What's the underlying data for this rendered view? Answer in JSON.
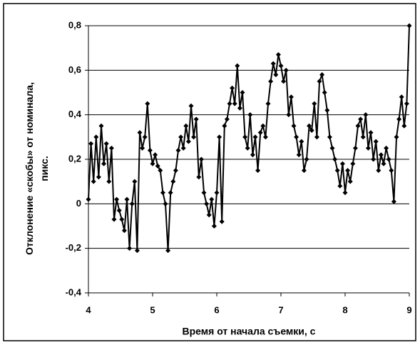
{
  "chart_data": {
    "type": "line",
    "xlabel": "Время от начала съемки, с",
    "ylabel": "Отклонение «скобы» от номинала, пикс.",
    "x": [
      4.0,
      4.04,
      4.08,
      4.12,
      4.16,
      4.2,
      4.24,
      4.28,
      4.32,
      4.36,
      4.4,
      4.44,
      4.48,
      4.52,
      4.56,
      4.6,
      4.64,
      4.68,
      4.72,
      4.76,
      4.8,
      4.84,
      4.88,
      4.92,
      4.96,
      5.0,
      5.04,
      5.08,
      5.12,
      5.16,
      5.2,
      5.24,
      5.28,
      5.32,
      5.36,
      5.4,
      5.44,
      5.48,
      5.52,
      5.56,
      5.6,
      5.64,
      5.68,
      5.72,
      5.76,
      5.8,
      5.84,
      5.88,
      5.92,
      5.96,
      6.0,
      6.04,
      6.08,
      6.12,
      6.16,
      6.2,
      6.24,
      6.28,
      6.32,
      6.36,
      6.4,
      6.44,
      6.48,
      6.52,
      6.56,
      6.6,
      6.64,
      6.68,
      6.72,
      6.76,
      6.8,
      6.84,
      6.88,
      6.92,
      6.96,
      7.0,
      7.04,
      7.08,
      7.12,
      7.16,
      7.2,
      7.24,
      7.28,
      7.32,
      7.36,
      7.4,
      7.44,
      7.48,
      7.52,
      7.56,
      7.6,
      7.64,
      7.68,
      7.72,
      7.76,
      7.8,
      7.84,
      7.88,
      7.92,
      7.96,
      8.0,
      8.04,
      8.08,
      8.12,
      8.16,
      8.2,
      8.24,
      8.28,
      8.32,
      8.36,
      8.4,
      8.44,
      8.48,
      8.52,
      8.56,
      8.6,
      8.64,
      8.68,
      8.72,
      8.76,
      8.8,
      8.84,
      8.88,
      8.92,
      8.96,
      9.0
    ],
    "series": [
      {
        "color": "#000000",
        "values": [
          0.02,
          0.27,
          0.1,
          0.3,
          0.12,
          0.35,
          0.18,
          0.27,
          0.1,
          0.25,
          -0.07,
          0.02,
          -0.03,
          -0.07,
          -0.12,
          0.02,
          -0.2,
          0.0,
          0.1,
          -0.21,
          0.32,
          0.25,
          0.3,
          0.45,
          0.24,
          0.18,
          0.22,
          0.17,
          0.15,
          0.05,
          0.0,
          -0.21,
          0.05,
          0.1,
          0.15,
          0.24,
          0.3,
          0.25,
          0.35,
          0.28,
          0.44,
          0.3,
          0.38,
          0.12,
          0.2,
          0.05,
          0.0,
          -0.05,
          0.02,
          -0.1,
          0.05,
          0.3,
          -0.08,
          0.35,
          0.38,
          0.45,
          0.52,
          0.45,
          0.62,
          0.43,
          0.5,
          0.3,
          0.25,
          0.4,
          0.22,
          0.3,
          0.15,
          0.32,
          0.35,
          0.3,
          0.45,
          0.55,
          0.63,
          0.58,
          0.67,
          0.62,
          0.55,
          0.6,
          0.4,
          0.48,
          0.35,
          0.3,
          0.22,
          0.28,
          0.15,
          0.2,
          0.35,
          0.33,
          0.45,
          0.3,
          0.55,
          0.58,
          0.5,
          0.42,
          0.3,
          0.25,
          0.2,
          0.15,
          0.08,
          0.18,
          0.05,
          0.15,
          0.1,
          0.18,
          0.25,
          0.35,
          0.38,
          0.3,
          0.4,
          0.25,
          0.32,
          0.2,
          0.28,
          0.15,
          0.22,
          0.18,
          0.25,
          0.2,
          0.15,
          0.01,
          0.3,
          0.38,
          0.48,
          0.35,
          0.45,
          0.8
        ]
      }
    ],
    "xlim": [
      4,
      9
    ],
    "xticks": [
      4,
      5,
      6,
      7,
      8,
      9
    ],
    "ylim": [
      -0.4,
      0.8
    ],
    "yticks": [
      {
        "value": -0.4,
        "label": "-0,4"
      },
      {
        "value": -0.2,
        "label": "-0,2"
      },
      {
        "value": 0,
        "label": "0"
      },
      {
        "value": 0.2,
        "label": "0,2"
      },
      {
        "value": 0.4,
        "label": "0,4"
      },
      {
        "value": 0.6,
        "label": "0,6"
      },
      {
        "value": 0.8,
        "label": "0,8"
      }
    ],
    "grid": true
  }
}
